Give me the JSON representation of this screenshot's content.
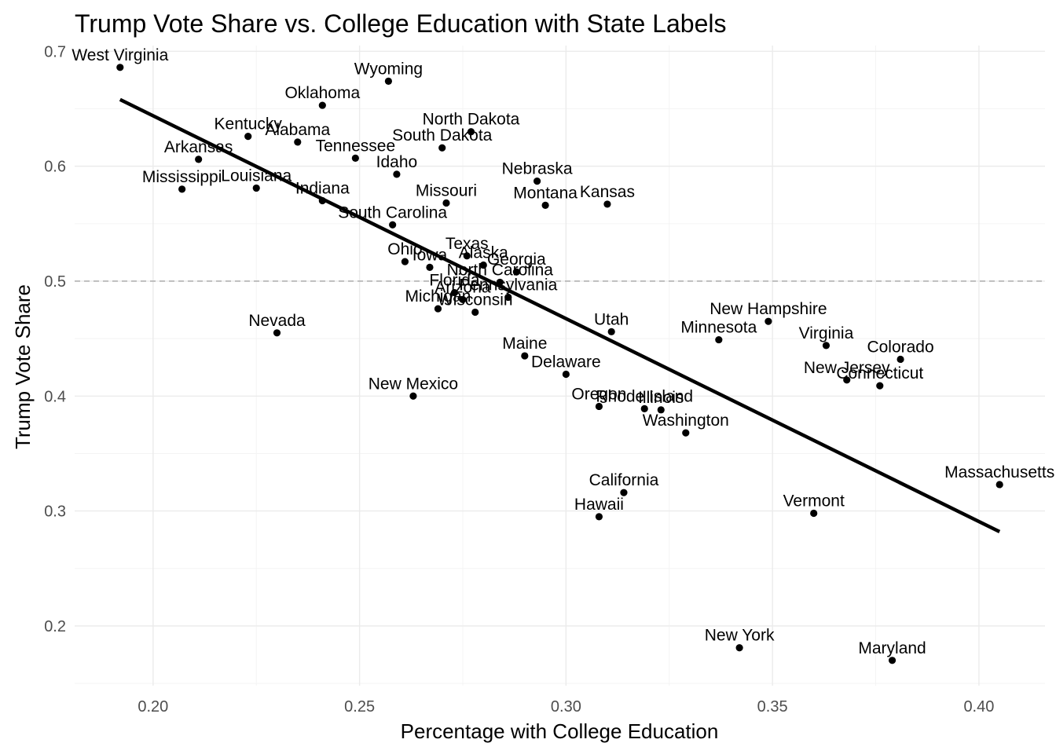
{
  "chart_data": {
    "type": "scatter",
    "title": "Trump Vote Share vs. College Education with State Labels",
    "xlabel": "Percentage with College Education",
    "ylabel": "Trump Vote Share",
    "xlim": [
      0.181,
      0.416
    ],
    "ylim": [
      0.148,
      0.705
    ],
    "x_ticks": [
      0.2,
      0.25,
      0.3,
      0.35,
      0.4
    ],
    "x_tick_labels": [
      "0.20",
      "0.25",
      "0.30",
      "0.35",
      "0.40"
    ],
    "y_ticks": [
      0.2,
      0.3,
      0.4,
      0.5,
      0.6,
      0.7
    ],
    "y_tick_labels": [
      "0.2",
      "0.3",
      "0.4",
      "0.5",
      "0.6",
      "0.7"
    ],
    "grid": true,
    "reference_line": {
      "y": 0.5,
      "style": "dashed",
      "color": "#b3b3b3"
    },
    "trend_line": {
      "x": [
        0.192,
        0.405
      ],
      "y": [
        0.658,
        0.282
      ],
      "color": "#000000"
    },
    "points": [
      {
        "label": "West Virginia",
        "x": 0.192,
        "y": 0.686
      },
      {
        "label": "Wyoming",
        "x": 0.257,
        "y": 0.674
      },
      {
        "label": "Oklahoma",
        "x": 0.241,
        "y": 0.653
      },
      {
        "label": "North Dakota",
        "x": 0.277,
        "y": 0.63
      },
      {
        "label": "Kentucky",
        "x": 0.223,
        "y": 0.626
      },
      {
        "label": "Alabama",
        "x": 0.235,
        "y": 0.621
      },
      {
        "label": "South Dakota",
        "x": 0.27,
        "y": 0.616
      },
      {
        "label": "Tennessee",
        "x": 0.249,
        "y": 0.607
      },
      {
        "label": "Arkansas",
        "x": 0.211,
        "y": 0.606
      },
      {
        "label": "Idaho",
        "x": 0.259,
        "y": 0.593
      },
      {
        "label": "Nebraska",
        "x": 0.293,
        "y": 0.587
      },
      {
        "label": "Louisiana",
        "x": 0.225,
        "y": 0.581
      },
      {
        "label": "Mississippi",
        "x": 0.207,
        "y": 0.58
      },
      {
        "label": "Indiana",
        "x": 0.241,
        "y": 0.57
      },
      {
        "label": "Missouri",
        "x": 0.271,
        "y": 0.568
      },
      {
        "label": "Kansas",
        "x": 0.31,
        "y": 0.567
      },
      {
        "label": "Montana",
        "x": 0.295,
        "y": 0.566
      },
      {
        "label": "South Carolina",
        "x": 0.258,
        "y": 0.549
      },
      {
        "label": "Texas",
        "x": 0.276,
        "y": 0.522
      },
      {
        "label": "Ohio",
        "x": 0.261,
        "y": 0.517
      },
      {
        "label": "Alaska",
        "x": 0.28,
        "y": 0.514
      },
      {
        "label": "Iowa",
        "x": 0.267,
        "y": 0.512
      },
      {
        "label": "Georgia",
        "x": 0.288,
        "y": 0.508
      },
      {
        "label": "North Carolina",
        "x": 0.284,
        "y": 0.499
      },
      {
        "label": "Florida",
        "x": 0.273,
        "y": 0.49
      },
      {
        "label": "Pennsylvania",
        "x": 0.286,
        "y": 0.486
      },
      {
        "label": "Arizona",
        "x": 0.275,
        "y": 0.484
      },
      {
        "label": "Michigan",
        "x": 0.269,
        "y": 0.476
      },
      {
        "label": "Wisconsin",
        "x": 0.278,
        "y": 0.473
      },
      {
        "label": "New Hampshire",
        "x": 0.349,
        "y": 0.465
      },
      {
        "label": "Utah",
        "x": 0.311,
        "y": 0.456
      },
      {
        "label": "Nevada",
        "x": 0.23,
        "y": 0.455
      },
      {
        "label": "Minnesota",
        "x": 0.337,
        "y": 0.449
      },
      {
        "label": "Virginia",
        "x": 0.363,
        "y": 0.444
      },
      {
        "label": "Maine",
        "x": 0.29,
        "y": 0.435
      },
      {
        "label": "Colorado",
        "x": 0.381,
        "y": 0.432
      },
      {
        "label": "Delaware",
        "x": 0.3,
        "y": 0.419
      },
      {
        "label": "New Jersey",
        "x": 0.368,
        "y": 0.414
      },
      {
        "label": "Connecticut",
        "x": 0.376,
        "y": 0.409
      },
      {
        "label": "New Mexico",
        "x": 0.263,
        "y": 0.4
      },
      {
        "label": "Oregon",
        "x": 0.308,
        "y": 0.391
      },
      {
        "label": "Rhode Island",
        "x": 0.319,
        "y": 0.389
      },
      {
        "label": "Illinois",
        "x": 0.323,
        "y": 0.388
      },
      {
        "label": "Washington",
        "x": 0.329,
        "y": 0.368
      },
      {
        "label": "Massachusetts",
        "x": 0.405,
        "y": 0.323
      },
      {
        "label": "California",
        "x": 0.314,
        "y": 0.316
      },
      {
        "label": "Vermont",
        "x": 0.36,
        "y": 0.298
      },
      {
        "label": "Hawaii",
        "x": 0.308,
        "y": 0.295
      },
      {
        "label": "New York",
        "x": 0.342,
        "y": 0.181
      },
      {
        "label": "Maryland",
        "x": 0.379,
        "y": 0.17
      }
    ]
  }
}
